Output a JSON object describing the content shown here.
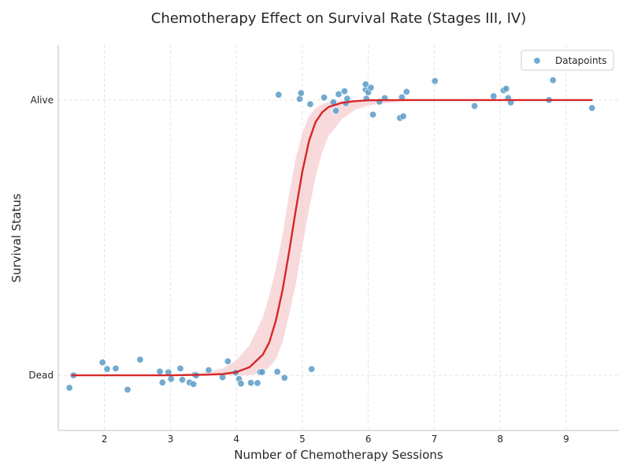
{
  "chart_data": {
    "type": "scatter",
    "title": "Chemotherapy Effect on Survival Rate (Stages III, IV)",
    "xlabel": "Number of Chemotherapy Sessions",
    "ylabel": "Survival Status",
    "xlim": [
      1.3,
      9.8
    ],
    "ylim": [
      -0.2,
      1.2
    ],
    "x_ticks": [
      2,
      3,
      4,
      5,
      6,
      7,
      8,
      9
    ],
    "y_ticks": [
      {
        "value": 0,
        "label": "Dead"
      },
      {
        "value": 1,
        "label": "Alive"
      }
    ],
    "grid": true,
    "legend": {
      "position": "top-right",
      "entries": [
        "Datapoints"
      ]
    },
    "colors": {
      "points": "#5b9bc8",
      "curve": "#d62728",
      "band": "#f4b6b9"
    },
    "series": [
      {
        "name": "Datapoints",
        "kind": "scatter",
        "points": [
          [
            1.47,
            -0.045
          ],
          [
            1.53,
            0.0
          ],
          [
            1.97,
            0.047
          ],
          [
            2.04,
            0.023
          ],
          [
            2.17,
            0.025
          ],
          [
            2.35,
            -0.052
          ],
          [
            2.54,
            0.057
          ],
          [
            2.84,
            0.014
          ],
          [
            2.88,
            -0.026
          ],
          [
            2.97,
            0.011
          ],
          [
            3.01,
            -0.013
          ],
          [
            3.15,
            0.025
          ],
          [
            3.18,
            -0.016
          ],
          [
            3.29,
            -0.026
          ],
          [
            3.35,
            -0.032
          ],
          [
            3.37,
            0.002
          ],
          [
            3.39,
            0.0
          ],
          [
            3.58,
            0.019
          ],
          [
            3.79,
            -0.007
          ],
          [
            3.87,
            0.051
          ],
          [
            3.99,
            0.01
          ],
          [
            4.04,
            -0.013
          ],
          [
            4.07,
            -0.03
          ],
          [
            4.22,
            -0.027
          ],
          [
            4.32,
            -0.028
          ],
          [
            4.36,
            0.012
          ],
          [
            4.39,
            0.012
          ],
          [
            4.62,
            0.013
          ],
          [
            4.73,
            -0.009
          ],
          [
            5.14,
            0.023
          ],
          [
            4.64,
            1.019
          ],
          [
            4.96,
            1.004
          ],
          [
            4.98,
            1.025
          ],
          [
            5.12,
            0.985
          ],
          [
            5.33,
            1.009
          ],
          [
            5.47,
            0.992
          ],
          [
            5.51,
            0.961
          ],
          [
            5.55,
            1.021
          ],
          [
            5.64,
            1.032
          ],
          [
            5.66,
            0.988
          ],
          [
            5.68,
            1.005
          ],
          [
            5.96,
            1.038
          ],
          [
            5.96,
            1.057
          ],
          [
            5.97,
            1.005
          ],
          [
            6.0,
            1.028
          ],
          [
            6.04,
            1.045
          ],
          [
            6.07,
            0.947
          ],
          [
            6.17,
            0.994
          ],
          [
            6.25,
            1.007
          ],
          [
            6.48,
            0.935
          ],
          [
            6.51,
            1.01
          ],
          [
            6.53,
            0.941
          ],
          [
            6.58,
            1.03
          ],
          [
            7.01,
            1.069
          ],
          [
            7.61,
            0.978
          ],
          [
            7.9,
            1.014
          ],
          [
            8.05,
            1.035
          ],
          [
            8.09,
            1.041
          ],
          [
            8.12,
            1.007
          ],
          [
            8.16,
            0.991
          ],
          [
            8.74,
            1.0
          ],
          [
            8.8,
            1.072
          ],
          [
            9.39,
            0.971
          ]
        ]
      },
      {
        "name": "",
        "kind": "logistic-fit",
        "x": [
          1.5,
          2.0,
          2.5,
          3.0,
          3.5,
          3.8,
          4.0,
          4.2,
          4.4,
          4.5,
          4.6,
          4.7,
          4.8,
          4.9,
          5.0,
          5.1,
          5.2,
          5.3,
          5.4,
          5.6,
          5.8,
          6.0,
          6.5,
          7.0,
          7.5,
          8.0,
          8.5,
          9.0,
          9.4
        ],
        "y": [
          0.0,
          0.0,
          0.0,
          0.0,
          0.002,
          0.005,
          0.012,
          0.03,
          0.075,
          0.12,
          0.2,
          0.31,
          0.45,
          0.6,
          0.74,
          0.85,
          0.92,
          0.955,
          0.975,
          0.99,
          0.996,
          0.999,
          1.0,
          1.0,
          1.0,
          1.0,
          1.0,
          1.0,
          1.0
        ],
        "ci_lower": [
          0.0,
          0.0,
          0.0,
          0.0,
          0.0,
          0.0,
          0.0,
          0.0,
          0.01,
          0.03,
          0.06,
          0.12,
          0.22,
          0.33,
          0.47,
          0.6,
          0.72,
          0.81,
          0.87,
          0.93,
          0.965,
          0.98,
          0.995,
          1.0,
          1.0,
          1.0,
          1.0,
          1.0,
          1.0
        ],
        "ci_upper": [
          0.0,
          0.0,
          0.0,
          0.002,
          0.01,
          0.025,
          0.055,
          0.11,
          0.21,
          0.29,
          0.39,
          0.51,
          0.66,
          0.79,
          0.88,
          0.94,
          0.97,
          0.985,
          0.993,
          0.998,
          1.0,
          1.0,
          1.0,
          1.0,
          1.0,
          1.0,
          1.0,
          1.0,
          1.0
        ]
      }
    ]
  }
}
